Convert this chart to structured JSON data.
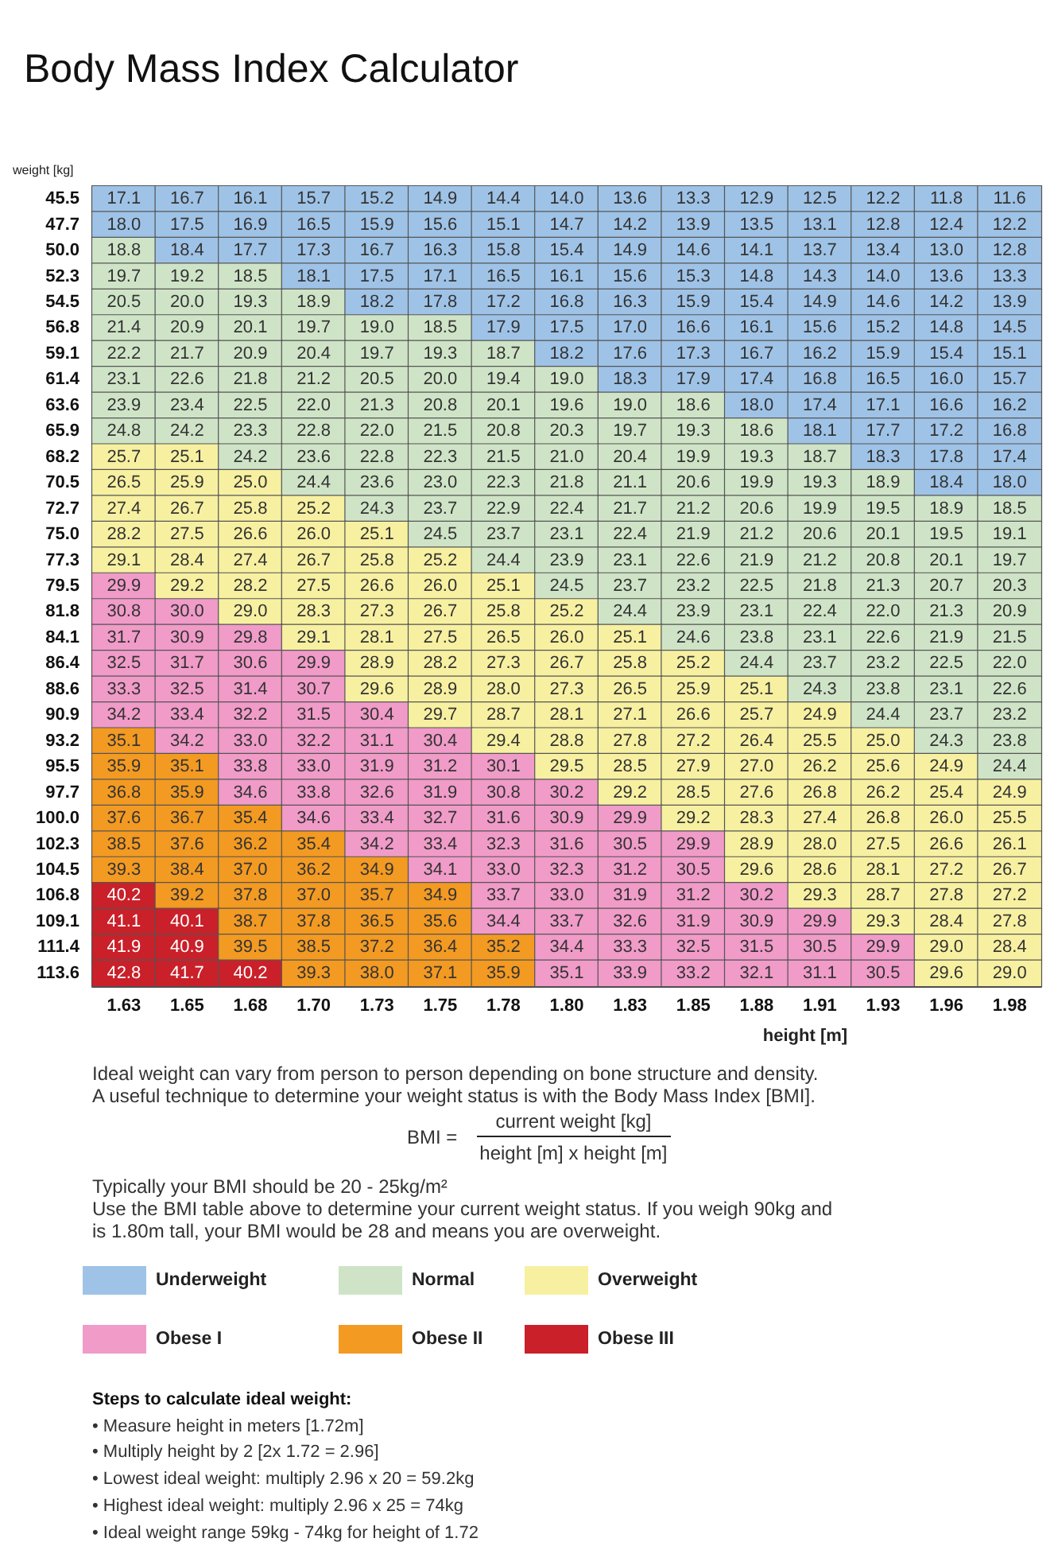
{
  "chart_data": {
    "type": "heatmap",
    "title": "Body Mass Index Calculator",
    "xlabel": "height [m]",
    "ylabel": "weight [kg]",
    "categories": [
      "1.63",
      "1.65",
      "1.68",
      "1.70",
      "1.73",
      "1.75",
      "1.78",
      "1.80",
      "1.83",
      "1.85",
      "1.88",
      "1.91",
      "1.93",
      "1.96",
      "1.98"
    ],
    "y_categories": [
      "45.5",
      "47.7",
      "50.0",
      "52.3",
      "54.5",
      "56.8",
      "59.1",
      "61.4",
      "63.6",
      "65.9",
      "68.2",
      "70.5",
      "72.7",
      "75.0",
      "77.3",
      "79.5",
      "81.8",
      "84.1",
      "86.4",
      "88.6",
      "90.9",
      "93.2",
      "95.5",
      "97.7",
      "100.0",
      "102.3",
      "104.5",
      "106.8",
      "109.1",
      "111.4",
      "113.6"
    ],
    "cells": [
      [
        17.1,
        16.7,
        16.1,
        15.7,
        15.2,
        14.9,
        14.4,
        14.0,
        13.6,
        13.3,
        12.9,
        12.5,
        12.2,
        11.8,
        11.6
      ],
      [
        18.0,
        17.5,
        16.9,
        16.5,
        15.9,
        15.6,
        15.1,
        14.7,
        14.2,
        13.9,
        13.5,
        13.1,
        12.8,
        12.4,
        12.2
      ],
      [
        18.8,
        18.4,
        17.7,
        17.3,
        16.7,
        16.3,
        15.8,
        15.4,
        14.9,
        14.6,
        14.1,
        13.7,
        13.4,
        13.0,
        12.8
      ],
      [
        19.7,
        19.2,
        18.5,
        18.1,
        17.5,
        17.1,
        16.5,
        16.1,
        15.6,
        15.3,
        14.8,
        14.3,
        14.0,
        13.6,
        13.3
      ],
      [
        20.5,
        20.0,
        19.3,
        18.9,
        18.2,
        17.8,
        17.2,
        16.8,
        16.3,
        15.9,
        15.4,
        14.9,
        14.6,
        14.2,
        13.9
      ],
      [
        21.4,
        20.9,
        20.1,
        19.7,
        19.0,
        18.5,
        17.9,
        17.5,
        17.0,
        16.6,
        16.1,
        15.6,
        15.2,
        14.8,
        14.5
      ],
      [
        22.2,
        21.7,
        20.9,
        20.4,
        19.7,
        19.3,
        18.7,
        18.2,
        17.6,
        17.3,
        16.7,
        16.2,
        15.9,
        15.4,
        15.1
      ],
      [
        23.1,
        22.6,
        21.8,
        21.2,
        20.5,
        20.0,
        19.4,
        19.0,
        18.3,
        17.9,
        17.4,
        16.8,
        16.5,
        16.0,
        15.7
      ],
      [
        23.9,
        23.4,
        22.5,
        22.0,
        21.3,
        20.8,
        20.1,
        19.6,
        19.0,
        18.6,
        18.0,
        17.4,
        17.1,
        16.6,
        16.2
      ],
      [
        24.8,
        24.2,
        23.3,
        22.8,
        22.0,
        21.5,
        20.8,
        20.3,
        19.7,
        19.3,
        18.6,
        18.1,
        17.7,
        17.2,
        16.8
      ],
      [
        25.7,
        25.1,
        24.2,
        23.6,
        22.8,
        22.3,
        21.5,
        21.0,
        20.4,
        19.9,
        19.3,
        18.7,
        18.3,
        17.8,
        17.4
      ],
      [
        26.5,
        25.9,
        25.0,
        24.4,
        23.6,
        23.0,
        22.3,
        21.8,
        21.1,
        20.6,
        19.9,
        19.3,
        18.9,
        18.4,
        18.0
      ],
      [
        27.4,
        26.7,
        25.8,
        25.2,
        24.3,
        23.7,
        22.9,
        22.4,
        21.7,
        21.2,
        20.6,
        19.9,
        19.5,
        18.9,
        18.5
      ],
      [
        28.2,
        27.5,
        26.6,
        26.0,
        25.1,
        24.5,
        23.7,
        23.1,
        22.4,
        21.9,
        21.2,
        20.6,
        20.1,
        19.5,
        19.1
      ],
      [
        29.1,
        28.4,
        27.4,
        26.7,
        25.8,
        25.2,
        24.4,
        23.9,
        23.1,
        22.6,
        21.9,
        21.2,
        20.8,
        20.1,
        19.7
      ],
      [
        29.9,
        29.2,
        28.2,
        27.5,
        26.6,
        26.0,
        25.1,
        24.5,
        23.7,
        23.2,
        22.5,
        21.8,
        21.3,
        20.7,
        20.3
      ],
      [
        30.8,
        30.0,
        29.0,
        28.3,
        27.3,
        26.7,
        25.8,
        25.2,
        24.4,
        23.9,
        23.1,
        22.4,
        22.0,
        21.3,
        20.9
      ],
      [
        31.7,
        30.9,
        29.8,
        29.1,
        28.1,
        27.5,
        26.5,
        26.0,
        25.1,
        24.6,
        23.8,
        23.1,
        22.6,
        21.9,
        21.5
      ],
      [
        32.5,
        31.7,
        30.6,
        29.9,
        28.9,
        28.2,
        27.3,
        26.7,
        25.8,
        25.2,
        24.4,
        23.7,
        23.2,
        22.5,
        22.0
      ],
      [
        33.3,
        32.5,
        31.4,
        30.7,
        29.6,
        28.9,
        28.0,
        27.3,
        26.5,
        25.9,
        25.1,
        24.3,
        23.8,
        23.1,
        22.6
      ],
      [
        34.2,
        33.4,
        32.2,
        31.5,
        30.4,
        29.7,
        28.7,
        28.1,
        27.1,
        26.6,
        25.7,
        24.9,
        24.4,
        23.7,
        23.2
      ],
      [
        35.1,
        34.2,
        33.0,
        32.2,
        31.1,
        30.4,
        29.4,
        28.8,
        27.8,
        27.2,
        26.4,
        25.5,
        25.0,
        24.3,
        23.8
      ],
      [
        35.9,
        35.1,
        33.8,
        33.0,
        31.9,
        31.2,
        30.1,
        29.5,
        28.5,
        27.9,
        27.0,
        26.2,
        25.6,
        24.9,
        24.4
      ],
      [
        36.8,
        35.9,
        34.6,
        33.8,
        32.6,
        31.9,
        30.8,
        30.2,
        29.2,
        28.5,
        27.6,
        26.8,
        26.2,
        25.4,
        24.9
      ],
      [
        37.6,
        36.7,
        35.4,
        34.6,
        33.4,
        32.7,
        31.6,
        30.9,
        29.9,
        29.2,
        28.3,
        27.4,
        26.8,
        26.0,
        25.5
      ],
      [
        38.5,
        37.6,
        36.2,
        35.4,
        34.2,
        33.4,
        32.3,
        31.6,
        30.5,
        29.9,
        28.9,
        28.0,
        27.5,
        26.6,
        26.1
      ],
      [
        39.3,
        38.4,
        37.0,
        36.2,
        34.9,
        34.1,
        33.0,
        32.3,
        31.2,
        30.5,
        29.6,
        28.6,
        28.1,
        27.2,
        26.7
      ],
      [
        40.2,
        39.2,
        37.8,
        37.0,
        35.7,
        34.9,
        33.7,
        33.0,
        31.9,
        31.2,
        30.2,
        29.3,
        28.7,
        27.8,
        27.2
      ],
      [
        41.1,
        40.1,
        38.7,
        37.8,
        36.5,
        35.6,
        34.4,
        33.7,
        32.6,
        31.9,
        30.9,
        29.9,
        29.3,
        28.4,
        27.8
      ],
      [
        41.9,
        40.9,
        39.5,
        38.5,
        37.2,
        36.4,
        35.2,
        34.4,
        33.3,
        32.5,
        31.5,
        30.5,
        29.9,
        29.0,
        28.4
      ],
      [
        42.8,
        41.7,
        40.2,
        39.3,
        38.0,
        37.1,
        35.9,
        35.1,
        33.9,
        33.2,
        32.1,
        31.1,
        30.5,
        29.6,
        29.0
      ]
    ],
    "cell_labels": [
      [
        "17.1",
        "16.7",
        "16.1",
        "15.7",
        "15.2",
        "14.9",
        "14.4",
        "14.0",
        "13.6",
        "13.3",
        "12.9",
        "12.5",
        "12.2",
        "11.8",
        "11.6"
      ],
      [
        "18.0",
        "17.5",
        "16.9",
        "16.5",
        "15.9",
        "15.6",
        "15.1",
        "14.7",
        "14.2",
        "13.9",
        "13.5",
        "13.1",
        "12.8",
        "12.4",
        "12.2"
      ],
      [
        "18.8",
        "18.4",
        "17.7",
        "17.3",
        "16.7",
        "16.3",
        "15.8",
        "15.4",
        "14.9",
        "14.6",
        "14.1",
        "13.7",
        "13.4",
        "13.0",
        "12.8"
      ],
      [
        "19.7",
        "19.2",
        "18.5",
        "18.1",
        "17.5",
        "17.1",
        "16.5",
        "16.1",
        "15.6",
        "15.3",
        "14.8",
        "14.3",
        "14.0",
        "13.6",
        "13.3"
      ],
      [
        "20.5",
        "20.0",
        "19.3",
        "18.9",
        "18.2",
        "17.8",
        "17.2",
        "16.8",
        "16.3",
        "15.9",
        "15.4",
        "14.9",
        "14.6",
        "14.2",
        "13.9"
      ],
      [
        "21.4",
        "20.9",
        "20.1",
        "19.7",
        "19.0",
        "18.5",
        "17.9",
        "17.5",
        "17.0",
        "16.6",
        "16.1",
        "15.6",
        "15.2",
        "14.8",
        "14.5"
      ],
      [
        "22.2",
        "21.7",
        "20.9",
        "20.4",
        "19.7",
        "19.3",
        "18.7",
        "18.2",
        "17.6",
        "17.3",
        "16.7",
        "16.2",
        "15.9",
        "15.4",
        "15.1"
      ],
      [
        "23.1",
        "22.6",
        "21.8",
        "21.2",
        "20.5",
        "20.0",
        "19.4",
        "19.0",
        "18.3",
        "17.9",
        "17.4",
        "16.8",
        "16.5",
        "16.0",
        "15.7"
      ],
      [
        "23.9",
        "23.4",
        "22.5",
        "22.0",
        "21.3",
        "20.8",
        "20.1",
        "19.6",
        "19.0",
        "18.6",
        "18.0",
        "17.4",
        "17.1",
        "16.6",
        "16.2"
      ],
      [
        "24.8",
        "24.2",
        "23.3",
        "22.8",
        "22.0",
        "21.5",
        "20.8",
        "20.3",
        "19.7",
        "19.3",
        "18.6",
        "18.1",
        "17.7",
        "17.2",
        "16.8"
      ],
      [
        "25.7",
        "25.1",
        "24.2",
        "23.6",
        "22.8",
        "22.3",
        "21.5",
        "21.0",
        "20.4",
        "19.9",
        "19.3",
        "18.7",
        "18.3",
        "17.8",
        "17.4"
      ],
      [
        "26.5",
        "25.9",
        "25.0",
        "24.4",
        "23.6",
        "23.0",
        "22.3",
        "21.8",
        "21.1",
        "20.6",
        "19.9",
        "19.3",
        "18.9",
        "18.4",
        "18.0"
      ],
      [
        "27.4",
        "26.7",
        "25.8",
        "25.2",
        "24.3",
        "23.7",
        "22.9",
        "22.4",
        "21.7",
        "21.2",
        "20.6",
        "19.9",
        "19.5",
        "18.9",
        "18.5"
      ],
      [
        "28.2",
        "27.5",
        "26.6",
        "26.0",
        "25.1",
        "24.5",
        "23.7",
        "23.1",
        "22.4",
        "21.9",
        "21.2",
        "20.6",
        "20.1",
        "19.5",
        "19.1"
      ],
      [
        "29.1",
        "28.4",
        "27.4",
        "26.7",
        "25.8",
        "25.2",
        "24.4",
        "23.9",
        "23.1",
        "22.6",
        "21.9",
        "21.2",
        "20.8",
        "20.1",
        "19.7"
      ],
      [
        "29.9",
        "29.2",
        "28.2",
        "27.5",
        "26.6",
        "26.0",
        "25.1",
        "24.5",
        "23.7",
        "23.2",
        "22.5",
        "21.8",
        "21.3",
        "20.7",
        "20.3"
      ],
      [
        "30.8",
        "30.0",
        "29.0",
        "28.3",
        "27.3",
        "26.7",
        "25.8",
        "25.2",
        "24.4",
        "23.9",
        "23.1",
        "22.4",
        "22.0",
        "21.3",
        "20.9"
      ],
      [
        "31.7",
        "30.9",
        "29.8",
        "29.1",
        "28.1",
        "27.5",
        "26.5",
        "26.0",
        "25.1",
        "24.6",
        "23.8",
        "23.1",
        "22.6",
        "21.9",
        "21.5"
      ],
      [
        "32.5",
        "31.7",
        "30.6",
        "29.9",
        "28.9",
        "28.2",
        "27.3",
        "26.7",
        "25.8",
        "25.2",
        "24.4",
        "23.7",
        "23.2",
        "22.5",
        "22.0"
      ],
      [
        "33.3",
        "32.5",
        "31.4",
        "30.7",
        "29.6",
        "28.9",
        "28.0",
        "27.3",
        "26.5",
        "25.9",
        "25.1",
        "24.3",
        "23.8",
        "23.1",
        "22.6"
      ],
      [
        "34.2",
        "33.4",
        "32.2",
        "31.5",
        "30.4",
        "29.7",
        "28.7",
        "28.1",
        "27.1",
        "26.6",
        "25.7",
        "24.9",
        "24.4",
        "23.7",
        "23.2"
      ],
      [
        "35.1",
        "34.2",
        "33.0",
        "32.2",
        "31.1",
        "30.4",
        "29.4",
        "28.8",
        "27.8",
        "27.2",
        "26.4",
        "25.5",
        "25.0",
        "24.3",
        "23.8"
      ],
      [
        "35.9",
        "35.1",
        "33.8",
        "33.0",
        "31.9",
        "31.2",
        "30.1",
        "29.5",
        "28.5",
        "27.9",
        "27.0",
        "26.2",
        "25.6",
        "24.9",
        "24.4"
      ],
      [
        "36.8",
        "35.9",
        "34.6",
        "33.8",
        "32.6",
        "31.9",
        "30.8",
        "30.2",
        "29.2",
        "28.5",
        "27.6",
        "26.8",
        "26.2",
        "25.4",
        "24.9"
      ],
      [
        "37.6",
        "36.7",
        "35.4",
        "34.6",
        "33.4",
        "32.7",
        "31.6",
        "30.9",
        "29.9",
        "29.2",
        "28.3",
        "27.4",
        "26.8",
        "26.0",
        "25.5"
      ],
      [
        "38.5",
        "37.6",
        "36.2",
        "35.4",
        "34.2",
        "33.4",
        "32.3",
        "31.6",
        "30.5",
        "29.9",
        "28.9",
        "28.0",
        "27.5",
        "26.6",
        "26.1"
      ],
      [
        "39.3",
        "38.4",
        "37.0",
        "36.2",
        "34.9",
        "34.1",
        "33.0",
        "32.3",
        "31.2",
        "30.5",
        "29.6",
        "28.6",
        "28.1",
        "27.2",
        "26.7"
      ],
      [
        "40.2",
        "39.2",
        "37.8",
        "37.0",
        "35.7",
        "34.9",
        "33.7",
        "33.0",
        "31.9",
        "31.2",
        "30.2",
        "29.3",
        "28.7",
        "27.8",
        "27.2"
      ],
      [
        "41.1",
        "40.1",
        "38.7",
        "37.8",
        "36.5",
        "35.6",
        "34.4",
        "33.7",
        "32.6",
        "31.9",
        "30.9",
        "29.9",
        "29.3",
        "28.4",
        "27.8"
      ],
      [
        "41.9",
        "40.9",
        "39.5",
        "38.5",
        "37.2",
        "36.4",
        "35.2",
        "34.4",
        "33.3",
        "32.5",
        "31.5",
        "30.5",
        "29.9",
        "29.0",
        "28.4"
      ],
      [
        "42.8",
        "41.7",
        "40.2",
        "39.3",
        "38.0",
        "37.1",
        "35.9",
        "35.1",
        "33.9",
        "33.2",
        "32.1",
        "31.1",
        "30.5",
        "29.6",
        "29.0"
      ]
    ],
    "colors": [
      [
        "#9fc3e7",
        "#9fc3e7",
        "#9fc3e7",
        "#9fc3e7",
        "#9fc3e7",
        "#9fc3e7",
        "#9fc3e7",
        "#9fc3e7",
        "#9fc3e7",
        "#9fc3e7",
        "#9fc3e7",
        "#9fc3e7",
        "#9fc3e7",
        "#9fc3e7",
        "#9fc3e7"
      ],
      [
        "#9fc3e7",
        "#9fc3e7",
        "#9fc3e7",
        "#9fc3e7",
        "#9fc3e7",
        "#9fc3e7",
        "#9fc3e7",
        "#9fc3e7",
        "#9fc3e7",
        "#9fc3e7",
        "#9fc3e7",
        "#9fc3e7",
        "#9fc3e7",
        "#9fc3e7",
        "#9fc3e7"
      ],
      [
        "#cfe4c7",
        "#9fc3e7",
        "#9fc3e7",
        "#9fc3e7",
        "#9fc3e7",
        "#9fc3e7",
        "#9fc3e7",
        "#9fc3e7",
        "#9fc3e7",
        "#9fc3e7",
        "#9fc3e7",
        "#9fc3e7",
        "#9fc3e7",
        "#9fc3e7",
        "#9fc3e7"
      ],
      [
        "#cfe4c7",
        "#cfe4c7",
        "#cfe4c7",
        "#9fc3e7",
        "#9fc3e7",
        "#9fc3e7",
        "#9fc3e7",
        "#9fc3e7",
        "#9fc3e7",
        "#9fc3e7",
        "#9fc3e7",
        "#9fc3e7",
        "#9fc3e7",
        "#9fc3e7",
        "#9fc3e7"
      ],
      [
        "#cfe4c7",
        "#cfe4c7",
        "#cfe4c7",
        "#cfe4c7",
        "#9fc3e7",
        "#9fc3e7",
        "#9fc3e7",
        "#9fc3e7",
        "#9fc3e7",
        "#9fc3e7",
        "#9fc3e7",
        "#9fc3e7",
        "#9fc3e7",
        "#9fc3e7",
        "#9fc3e7"
      ],
      [
        "#cfe4c7",
        "#cfe4c7",
        "#cfe4c7",
        "#cfe4c7",
        "#cfe4c7",
        "#cfe4c7",
        "#9fc3e7",
        "#9fc3e7",
        "#9fc3e7",
        "#9fc3e7",
        "#9fc3e7",
        "#9fc3e7",
        "#9fc3e7",
        "#9fc3e7",
        "#9fc3e7"
      ],
      [
        "#cfe4c7",
        "#cfe4c7",
        "#cfe4c7",
        "#cfe4c7",
        "#cfe4c7",
        "#cfe4c7",
        "#cfe4c7",
        "#9fc3e7",
        "#9fc3e7",
        "#9fc3e7",
        "#9fc3e7",
        "#9fc3e7",
        "#9fc3e7",
        "#9fc3e7",
        "#9fc3e7"
      ],
      [
        "#cfe4c7",
        "#cfe4c7",
        "#cfe4c7",
        "#cfe4c7",
        "#cfe4c7",
        "#cfe4c7",
        "#cfe4c7",
        "#cfe4c7",
        "#9fc3e7",
        "#9fc3e7",
        "#9fc3e7",
        "#9fc3e7",
        "#9fc3e7",
        "#9fc3e7",
        "#9fc3e7"
      ],
      [
        "#cfe4c7",
        "#cfe4c7",
        "#cfe4c7",
        "#cfe4c7",
        "#cfe4c7",
        "#cfe4c7",
        "#cfe4c7",
        "#cfe4c7",
        "#cfe4c7",
        "#cfe4c7",
        "#9fc3e7",
        "#9fc3e7",
        "#9fc3e7",
        "#9fc3e7",
        "#9fc3e7"
      ],
      [
        "#cfe4c7",
        "#cfe4c7",
        "#cfe4c7",
        "#cfe4c7",
        "#cfe4c7",
        "#cfe4c7",
        "#cfe4c7",
        "#cfe4c7",
        "#cfe4c7",
        "#cfe4c7",
        "#cfe4c7",
        "#9fc3e7",
        "#9fc3e7",
        "#9fc3e7",
        "#9fc3e7"
      ],
      [
        "#f7f0a1",
        "#f7f0a1",
        "#cfe4c7",
        "#cfe4c7",
        "#cfe4c7",
        "#cfe4c7",
        "#cfe4c7",
        "#cfe4c7",
        "#cfe4c7",
        "#cfe4c7",
        "#cfe4c7",
        "#cfe4c7",
        "#9fc3e7",
        "#9fc3e7",
        "#9fc3e7"
      ],
      [
        "#f7f0a1",
        "#f7f0a1",
        "#f7f0a1",
        "#cfe4c7",
        "#cfe4c7",
        "#cfe4c7",
        "#cfe4c7",
        "#cfe4c7",
        "#cfe4c7",
        "#cfe4c7",
        "#cfe4c7",
        "#cfe4c7",
        "#cfe4c7",
        "#9fc3e7",
        "#9fc3e7"
      ],
      [
        "#f7f0a1",
        "#f7f0a1",
        "#f7f0a1",
        "#f7f0a1",
        "#cfe4c7",
        "#cfe4c7",
        "#cfe4c7",
        "#cfe4c7",
        "#cfe4c7",
        "#cfe4c7",
        "#cfe4c7",
        "#cfe4c7",
        "#cfe4c7",
        "#cfe4c7",
        "#cfe4c7"
      ],
      [
        "#f7f0a1",
        "#f7f0a1",
        "#f7f0a1",
        "#f7f0a1",
        "#f7f0a1",
        "#cfe4c7",
        "#cfe4c7",
        "#cfe4c7",
        "#cfe4c7",
        "#cfe4c7",
        "#cfe4c7",
        "#cfe4c7",
        "#cfe4c7",
        "#cfe4c7",
        "#cfe4c7"
      ],
      [
        "#f7f0a1",
        "#f7f0a1",
        "#f7f0a1",
        "#f7f0a1",
        "#f7f0a1",
        "#f7f0a1",
        "#cfe4c7",
        "#cfe4c7",
        "#cfe4c7",
        "#cfe4c7",
        "#cfe4c7",
        "#cfe4c7",
        "#cfe4c7",
        "#cfe4c7",
        "#cfe4c7"
      ],
      [
        "#f09bc8",
        "#f7f0a1",
        "#f7f0a1",
        "#f7f0a1",
        "#f7f0a1",
        "#f7f0a1",
        "#f7f0a1",
        "#cfe4c7",
        "#cfe4c7",
        "#cfe4c7",
        "#cfe4c7",
        "#cfe4c7",
        "#cfe4c7",
        "#cfe4c7",
        "#cfe4c7"
      ],
      [
        "#f09bc8",
        "#f09bc8",
        "#f7f0a1",
        "#f7f0a1",
        "#f7f0a1",
        "#f7f0a1",
        "#f7f0a1",
        "#f7f0a1",
        "#cfe4c7",
        "#cfe4c7",
        "#cfe4c7",
        "#cfe4c7",
        "#cfe4c7",
        "#cfe4c7",
        "#cfe4c7"
      ],
      [
        "#f09bc8",
        "#f09bc8",
        "#f09bc8",
        "#f7f0a1",
        "#f7f0a1",
        "#f7f0a1",
        "#f7f0a1",
        "#f7f0a1",
        "#f7f0a1",
        "#cfe4c7",
        "#cfe4c7",
        "#cfe4c7",
        "#cfe4c7",
        "#cfe4c7",
        "#cfe4c7"
      ],
      [
        "#f09bc8",
        "#f09bc8",
        "#f09bc8",
        "#f09bc8",
        "#f7f0a1",
        "#f7f0a1",
        "#f7f0a1",
        "#f7f0a1",
        "#f7f0a1",
        "#f7f0a1",
        "#cfe4c7",
        "#cfe4c7",
        "#cfe4c7",
        "#cfe4c7",
        "#cfe4c7"
      ],
      [
        "#f09bc8",
        "#f09bc8",
        "#f09bc8",
        "#f09bc8",
        "#f7f0a1",
        "#f7f0a1",
        "#f7f0a1",
        "#f7f0a1",
        "#f7f0a1",
        "#f7f0a1",
        "#f7f0a1",
        "#cfe4c7",
        "#cfe4c7",
        "#cfe4c7",
        "#cfe4c7"
      ],
      [
        "#f09bc8",
        "#f09bc8",
        "#f09bc8",
        "#f09bc8",
        "#f09bc8",
        "#f7f0a1",
        "#f7f0a1",
        "#f7f0a1",
        "#f7f0a1",
        "#f7f0a1",
        "#f7f0a1",
        "#f7f0a1",
        "#cfe4c7",
        "#cfe4c7",
        "#cfe4c7"
      ],
      [
        "#f39a22",
        "#f09bc8",
        "#f09bc8",
        "#f09bc8",
        "#f09bc8",
        "#f09bc8",
        "#f7f0a1",
        "#f7f0a1",
        "#f7f0a1",
        "#f7f0a1",
        "#f7f0a1",
        "#f7f0a1",
        "#f7f0a1",
        "#cfe4c7",
        "#cfe4c7"
      ],
      [
        "#f39a22",
        "#f39a22",
        "#f09bc8",
        "#f09bc8",
        "#f09bc8",
        "#f09bc8",
        "#f09bc8",
        "#f7f0a1",
        "#f7f0a1",
        "#f7f0a1",
        "#f7f0a1",
        "#f7f0a1",
        "#f7f0a1",
        "#f7f0a1",
        "#cfe4c7"
      ],
      [
        "#f39a22",
        "#f39a22",
        "#f09bc8",
        "#f09bc8",
        "#f09bc8",
        "#f09bc8",
        "#f09bc8",
        "#f09bc8",
        "#f7f0a1",
        "#f7f0a1",
        "#f7f0a1",
        "#f7f0a1",
        "#f7f0a1",
        "#f7f0a1",
        "#f7f0a1"
      ],
      [
        "#f39a22",
        "#f39a22",
        "#f39a22",
        "#f09bc8",
        "#f09bc8",
        "#f09bc8",
        "#f09bc8",
        "#f09bc8",
        "#f09bc8",
        "#f7f0a1",
        "#f7f0a1",
        "#f7f0a1",
        "#f7f0a1",
        "#f7f0a1",
        "#f7f0a1"
      ],
      [
        "#f39a22",
        "#f39a22",
        "#f39a22",
        "#f39a22",
        "#f09bc8",
        "#f09bc8",
        "#f09bc8",
        "#f09bc8",
        "#f09bc8",
        "#f09bc8",
        "#f7f0a1",
        "#f7f0a1",
        "#f7f0a1",
        "#f7f0a1",
        "#f7f0a1"
      ],
      [
        "#f39a22",
        "#f39a22",
        "#f39a22",
        "#f39a22",
        "#f39a22",
        "#f09bc8",
        "#f09bc8",
        "#f09bc8",
        "#f09bc8",
        "#f09bc8",
        "#f7f0a1",
        "#f7f0a1",
        "#f7f0a1",
        "#f7f0a1",
        "#f7f0a1"
      ],
      [
        "#c9202a",
        "#f39a22",
        "#f39a22",
        "#f39a22",
        "#f39a22",
        "#f39a22",
        "#f09bc8",
        "#f09bc8",
        "#f09bc8",
        "#f09bc8",
        "#f09bc8",
        "#f7f0a1",
        "#f7f0a1",
        "#f7f0a1",
        "#f7f0a1"
      ],
      [
        "#c9202a",
        "#c9202a",
        "#f39a22",
        "#f39a22",
        "#f39a22",
        "#f39a22",
        "#f09bc8",
        "#f09bc8",
        "#f09bc8",
        "#f09bc8",
        "#f09bc8",
        "#f09bc8",
        "#f7f0a1",
        "#f7f0a1",
        "#f7f0a1"
      ],
      [
        "#c9202a",
        "#c9202a",
        "#f39a22",
        "#f39a22",
        "#f39a22",
        "#f39a22",
        "#f39a22",
        "#f09bc8",
        "#f09bc8",
        "#f09bc8",
        "#f09bc8",
        "#f09bc8",
        "#f09bc8",
        "#f7f0a1",
        "#f7f0a1"
      ],
      [
        "#c9202a",
        "#c9202a",
        "#c9202a",
        "#f39a22",
        "#f39a22",
        "#f39a22",
        "#f39a22",
        "#f09bc8",
        "#f09bc8",
        "#f09bc8",
        "#f09bc8",
        "#f09bc8",
        "#f09bc8",
        "#f7f0a1",
        "#f7f0a1"
      ]
    ],
    "data_labels": true,
    "annotations": [
      "Ideal weight can vary from person to person depending on bone structure and density.",
      "A useful technique to determine your weight status is with the Body Mass Index [BMI].",
      "BMI =",
      "current weight [kg]",
      "height [m] x height [m]",
      "Typically your BMI should be 20 - 25kg/m²",
      "Use the BMI table above to determine your current weight status. If you weigh 90kg and",
      "is 1.80m tall, your BMI would be 28 and means you are overweight.",
      "Underweight",
      "Normal",
      "Overweight",
      "Obese I",
      "Obese II",
      "Obese III",
      "Steps to calculate ideal weight:",
      "• Measure height in meters [1.72m]",
      "• Multiply height by 2 [2x 1.72 = 2.96]",
      "• Lowest ideal weight: multiply 2.96 x 20 = 59.2kg",
      "• Highest ideal weight: multiply 2.96 x 25 = 74kg",
      "• Ideal weight range 59kg - 74kg for height of 1.72"
    ]
  }
}
